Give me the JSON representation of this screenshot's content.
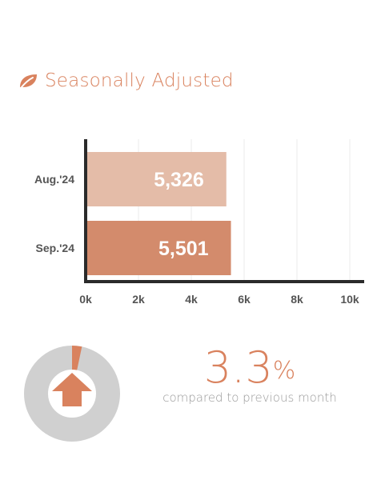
{
  "header": {
    "title": "Seasonally Adjusted",
    "icon": "leaf-icon"
  },
  "colors": {
    "accent": "#d9825e",
    "bar_aug": "#e4bca8",
    "bar_sep": "#d38b6c",
    "axis": "#2b2b2b",
    "grid": "#ebebeb",
    "donut_bg": "#d0d0d0"
  },
  "chart_data": {
    "type": "bar",
    "orientation": "horizontal",
    "categories": [
      "Aug.'24",
      "Sep.'24"
    ],
    "values": [
      5326,
      5501
    ],
    "value_labels": [
      "5,326",
      "5,501"
    ],
    "xlim": [
      0,
      10000
    ],
    "x_ticks": [
      0,
      2000,
      4000,
      6000,
      8000,
      10000
    ],
    "x_tick_labels": [
      "0k",
      "2k",
      "4k",
      "6k",
      "8k",
      "10k"
    ],
    "grid": true
  },
  "change": {
    "value": "3.3",
    "unit": "%",
    "caption": "compared to previous month",
    "direction": "up",
    "percent": 3.3,
    "arrow-icon": "arrow-up-icon"
  }
}
